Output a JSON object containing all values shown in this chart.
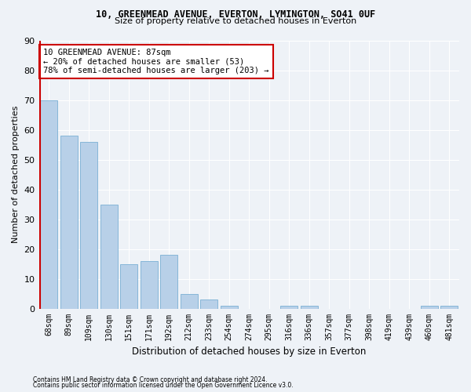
{
  "title1": "10, GREENMEAD AVENUE, EVERTON, LYMINGTON, SO41 0UF",
  "title2": "Size of property relative to detached houses in Everton",
  "xlabel": "Distribution of detached houses by size in Everton",
  "ylabel": "Number of detached properties",
  "categories": [
    "68sqm",
    "89sqm",
    "109sqm",
    "130sqm",
    "151sqm",
    "171sqm",
    "192sqm",
    "212sqm",
    "233sqm",
    "254sqm",
    "274sqm",
    "295sqm",
    "316sqm",
    "336sqm",
    "357sqm",
    "377sqm",
    "398sqm",
    "419sqm",
    "439sqm",
    "460sqm",
    "481sqm"
  ],
  "values": [
    70,
    58,
    56,
    35,
    15,
    16,
    18,
    5,
    3,
    1,
    0,
    0,
    1,
    1,
    0,
    0,
    0,
    0,
    0,
    1,
    1
  ],
  "bar_color": "#b8d0e8",
  "bar_edge_color": "#7aafd4",
  "vline_bar_index": 0,
  "vline_color": "#cc0000",
  "annotation_text": "10 GREENMEAD AVENUE: 87sqm\n← 20% of detached houses are smaller (53)\n78% of semi-detached houses are larger (203) →",
  "annotation_box_color": "#ffffff",
  "annotation_box_edge": "#cc0000",
  "ylim": [
    0,
    90
  ],
  "yticks": [
    0,
    10,
    20,
    30,
    40,
    50,
    60,
    70,
    80,
    90
  ],
  "background_color": "#eef2f7",
  "grid_color": "#ffffff",
  "footer1": "Contains HM Land Registry data © Crown copyright and database right 2024.",
  "footer2": "Contains public sector information licensed under the Open Government Licence v3.0."
}
